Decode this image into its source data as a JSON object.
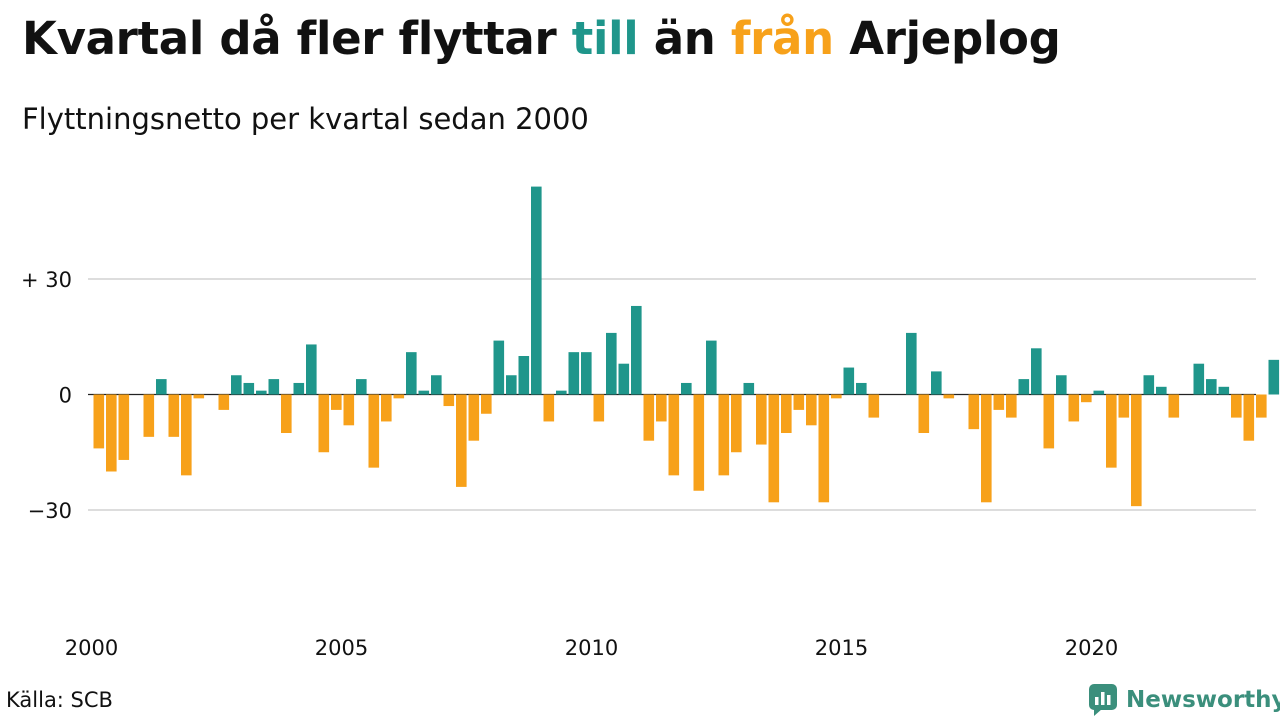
{
  "header": {
    "title_parts": {
      "p1": "Kvartal då fler flyttar ",
      "p2": "till",
      "p3": " än ",
      "p4": "från",
      "p5": " Arjeplog"
    },
    "subtitle": "Flyttningsnetto per kvartal sedan 2000"
  },
  "footer": {
    "source": "Källa: SCB",
    "brand": "Newsworthy",
    "brand_icon": "bar-chart-speech-bubble-icon"
  },
  "colors": {
    "positive": "#1f968b",
    "negative": "#f7a11a",
    "grid": "#dddddd",
    "brand": "#3b8f7c"
  },
  "chart_data": {
    "type": "bar",
    "title": "Kvartal då fler flyttar till än från Arjeplog",
    "subtitle": "Flyttningsnetto per kvartal sedan 2000",
    "ylim": [
      -60,
      55
    ],
    "yticks": [
      {
        "value": 30,
        "label": "+ 30"
      },
      {
        "value": 0,
        "label": "0"
      },
      {
        "value": -30,
        "label": "−30"
      }
    ],
    "xticks": [
      "2000",
      "2005",
      "2010",
      "2015",
      "2020"
    ],
    "grid": true,
    "start_year": 2000,
    "values": [
      -14,
      -20,
      -17,
      0,
      -11,
      4,
      -11,
      -21,
      -1,
      0,
      -4,
      5,
      3,
      1,
      4,
      -10,
      3,
      13,
      -15,
      -4,
      -8,
      4,
      -19,
      -7,
      -1,
      11,
      1,
      5,
      -3,
      -24,
      -12,
      -5,
      14,
      5,
      10,
      54,
      -7,
      1,
      11,
      11,
      -7,
      16,
      8,
      23,
      -12,
      -7,
      -21,
      3,
      -25,
      14,
      -21,
      -15,
      3,
      -13,
      -28,
      -10,
      -4,
      -8,
      -28,
      -1,
      7,
      3,
      -6,
      0,
      0,
      16,
      -10,
      6,
      -1,
      0,
      -9,
      -28,
      -4,
      -6,
      4,
      12,
      -14,
      5,
      -7,
      -2,
      1,
      -19,
      -6,
      -29,
      5,
      2,
      -6,
      0,
      8,
      4,
      2,
      -6,
      -12,
      -6,
      9
    ]
  }
}
